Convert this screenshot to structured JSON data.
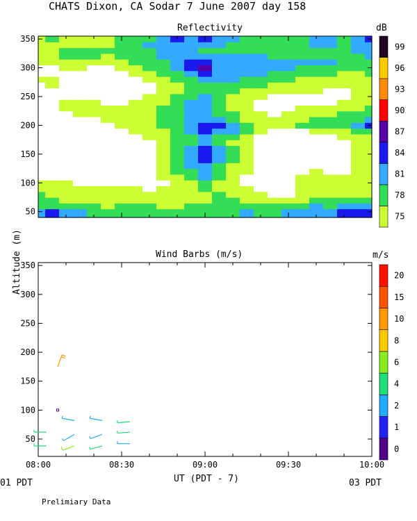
{
  "page": {
    "title": "CHATS Dixon, CA  Sodar   7 June 2007  day 158",
    "footnote": "Prelimiary Data",
    "y_axis_label": "Altitude (m)",
    "x_axis_label": "UT  (PDT - 7)",
    "x_start_date": "01 PDT",
    "x_end_date": "03 PDT"
  },
  "chart_data": [
    {
      "type": "heatmap",
      "title": "Reflectivity",
      "colorbar_unit": "dB",
      "colorbar_ticks": [
        "75",
        "78",
        "81",
        "84",
        "87",
        "90",
        "93",
        "96",
        "99"
      ],
      "colorbar_colors": [
        "#ccff33",
        "#33dd55",
        "#33aaff",
        "#1a1aee",
        "#5500aa",
        "#ff0000",
        "#ff8800",
        "#ffcc00",
        "#220022"
      ],
      "below_min_color": "#ffffff",
      "x_ticks": [
        "08:00",
        "08:30",
        "09:00",
        "09:30",
        "10:00"
      ],
      "y_ticks": [
        50,
        100,
        150,
        200,
        250,
        300,
        350
      ],
      "xlim": [
        "08:00",
        "10:00"
      ],
      "ylim": [
        40,
        355
      ],
      "times": [
        "08:00",
        "08:05",
        "08:10",
        "08:15",
        "08:20",
        "08:25",
        "08:30",
        "08:35",
        "08:40",
        "08:45",
        "08:50",
        "08:55",
        "09:00",
        "09:05",
        "09:10",
        "09:15",
        "09:20",
        "09:25",
        "09:30",
        "09:35",
        "09:40",
        "09:45",
        "09:50",
        "09:55",
        "10:00"
      ],
      "altitudes": [
        50,
        60,
        70,
        80,
        90,
        100,
        110,
        120,
        130,
        140,
        150,
        160,
        170,
        180,
        190,
        200,
        210,
        220,
        230,
        240,
        250,
        260,
        270,
        280,
        290,
        300,
        310,
        320,
        330,
        340,
        350
      ],
      "values": [
        [
          82,
          84,
          81,
          81,
          79,
          78,
          79,
          80,
          80,
          79,
          78,
          79,
          79,
          80,
          80,
          81,
          80,
          80,
          81,
          81,
          83,
          81,
          84,
          84,
          84
        ],
        [
          80,
          80,
          79,
          78,
          78,
          77,
          78,
          78,
          78,
          77,
          77,
          78,
          78,
          79,
          79,
          79,
          79,
          78,
          79,
          79,
          82,
          80,
          82,
          82,
          82
        ],
        [
          79,
          78,
          77,
          77,
          76,
          76,
          76,
          77,
          76,
          76,
          76,
          76,
          77,
          78,
          78,
          77,
          77,
          77,
          77,
          77,
          78,
          78,
          79,
          80,
          79
        ],
        [
          78,
          76,
          76,
          76,
          75,
          75,
          75,
          76,
          75,
          75,
          75,
          76,
          77,
          78,
          77,
          76,
          75,
          74,
          74,
          75,
          77,
          76,
          77,
          77,
          77
        ],
        [
          77,
          76,
          75,
          75,
          75,
          75,
          75,
          75,
          74,
          75,
          76,
          76,
          78,
          77,
          76,
          75,
          74,
          73,
          74,
          75,
          75,
          76,
          76,
          76,
          77
        ],
        [
          75,
          75,
          75,
          74,
          74,
          73,
          73,
          72,
          72,
          73,
          75,
          77,
          79,
          77,
          75,
          74,
          73,
          72,
          73,
          75,
          76,
          77,
          77,
          77,
          77
        ],
        [
          74,
          73,
          73,
          72,
          72,
          72,
          72,
          72,
          73,
          75,
          77,
          79,
          82,
          80,
          76,
          74,
          73,
          72,
          73,
          75,
          76,
          75,
          76,
          77,
          77
        ],
        [
          73,
          72,
          72,
          72,
          71,
          71,
          72,
          73,
          74,
          75,
          78,
          80,
          81,
          79,
          77,
          75,
          74,
          73,
          73,
          74,
          75,
          74,
          74,
          76,
          77
        ],
        [
          73,
          72,
          72,
          71,
          71,
          71,
          72,
          73,
          74,
          76,
          78,
          82,
          83,
          80,
          77,
          75,
          73,
          72,
          72,
          73,
          74,
          73,
          73,
          75,
          77
        ],
        [
          72,
          72,
          71,
          71,
          70,
          70,
          71,
          72,
          73,
          75,
          78,
          82,
          84,
          81,
          78,
          75,
          73,
          71,
          71,
          72,
          73,
          72,
          73,
          75,
          77
        ],
        [
          72,
          71,
          71,
          70,
          70,
          70,
          71,
          72,
          74,
          76,
          79,
          83,
          86,
          82,
          78,
          75,
          73,
          71,
          70,
          71,
          72,
          72,
          73,
          75,
          77
        ],
        [
          72,
          71,
          70,
          70,
          70,
          70,
          71,
          72,
          74,
          76,
          79,
          82,
          84,
          81,
          78,
          75,
          73,
          71,
          70,
          71,
          72,
          72,
          73,
          75,
          77
        ],
        [
          72,
          71,
          70,
          70,
          70,
          71,
          72,
          73,
          74,
          76,
          78,
          80,
          81,
          79,
          77,
          75,
          73,
          71,
          70,
          71,
          72,
          73,
          74,
          76,
          77
        ],
        [
          72,
          71,
          70,
          70,
          71,
          72,
          73,
          74,
          75,
          77,
          78,
          80,
          82,
          80,
          78,
          76,
          74,
          72,
          71,
          72,
          73,
          74,
          75,
          76,
          77
        ],
        [
          72,
          71,
          71,
          71,
          72,
          73,
          74,
          75,
          76,
          77,
          79,
          82,
          84,
          83,
          81,
          78,
          76,
          74,
          73,
          74,
          75,
          76,
          77,
          78,
          79
        ],
        [
          72,
          72,
          72,
          72,
          73,
          74,
          75,
          76,
          77,
          78,
          80,
          83,
          85,
          84,
          82,
          79,
          77,
          76,
          77,
          78,
          78,
          79,
          80,
          81,
          84
        ],
        [
          73,
          73,
          73,
          73,
          74,
          75,
          76,
          77,
          77,
          78,
          80,
          82,
          83,
          81,
          79,
          77,
          76,
          75,
          76,
          77,
          78,
          79,
          79,
          80,
          81
        ],
        [
          73,
          73,
          74,
          75,
          75,
          75,
          75,
          76,
          77,
          78,
          80,
          82,
          83,
          80,
          78,
          76,
          75,
          74,
          75,
          76,
          76,
          77,
          78,
          79,
          79
        ],
        [
          74,
          74,
          75,
          76,
          76,
          75,
          75,
          76,
          77,
          78,
          79,
          81,
          82,
          79,
          77,
          75,
          74,
          73,
          74,
          75,
          75,
          76,
          76,
          77,
          78
        ],
        [
          74,
          74,
          75,
          75,
          75,
          74,
          74,
          75,
          76,
          77,
          79,
          81,
          83,
          80,
          77,
          75,
          74,
          73,
          73,
          74,
          74,
          74,
          75,
          76,
          77
        ],
        [
          73,
          73,
          74,
          74,
          74,
          74,
          74,
          74,
          75,
          76,
          78,
          80,
          82,
          79,
          77,
          76,
          75,
          74,
          74,
          74,
          74,
          74,
          74,
          75,
          76
        ],
        [
          73,
          74,
          74,
          74,
          74,
          73,
          73,
          73,
          74,
          75,
          77,
          78,
          79,
          79,
          78,
          77,
          76,
          75,
          75,
          75,
          75,
          74,
          74,
          75,
          76
        ],
        [
          74,
          75,
          74,
          74,
          73,
          73,
          73,
          74,
          74,
          75,
          77,
          78,
          80,
          80,
          80,
          79,
          78,
          77,
          76,
          76,
          76,
          76,
          75,
          75,
          76
        ],
        [
          75,
          75,
          74,
          74,
          73,
          73,
          73,
          74,
          75,
          76,
          78,
          80,
          82,
          81,
          81,
          80,
          79,
          79,
          78,
          77,
          77,
          77,
          76,
          76,
          77
        ],
        [
          74,
          74,
          74,
          74,
          73,
          73,
          74,
          75,
          76,
          78,
          80,
          83,
          86,
          82,
          81,
          81,
          81,
          80,
          79,
          78,
          78,
          78,
          77,
          77,
          78
        ],
        [
          74,
          74,
          75,
          75,
          74,
          74,
          75,
          76,
          78,
          79,
          81,
          84,
          87,
          83,
          81,
          81,
          82,
          82,
          81,
          80,
          79,
          80,
          79,
          78,
          78
        ],
        [
          76,
          76,
          77,
          77,
          76,
          76,
          77,
          78,
          79,
          80,
          82,
          84,
          85,
          83,
          82,
          82,
          82,
          82,
          82,
          81,
          81,
          81,
          80,
          79,
          79
        ],
        [
          77,
          77,
          78,
          78,
          78,
          77,
          78,
          79,
          80,
          81,
          82,
          83,
          83,
          82,
          81,
          81,
          81,
          80,
          80,
          80,
          80,
          80,
          80,
          80,
          81
        ],
        [
          76,
          77,
          78,
          78,
          78,
          78,
          79,
          80,
          80,
          81,
          82,
          81,
          80,
          80,
          79,
          79,
          79,
          79,
          79,
          79,
          80,
          80,
          80,
          81,
          81
        ],
        [
          76,
          77,
          77,
          77,
          77,
          77,
          78,
          79,
          81,
          82,
          83,
          82,
          83,
          81,
          80,
          79,
          79,
          79,
          79,
          80,
          81,
          81,
          80,
          81,
          82
        ],
        [
          77,
          78,
          77,
          77,
          77,
          77,
          78,
          79,
          80,
          82,
          84,
          83,
          86,
          82,
          81,
          79,
          79,
          79,
          79,
          80,
          81,
          81,
          80,
          82,
          84
        ]
      ]
    },
    {
      "type": "scatter",
      "title": "Wind Barbs (m/s)",
      "colorbar_unit": "m/s",
      "colorbar_ticks": [
        "0",
        "1",
        "2",
        "4",
        "6",
        "8",
        "10",
        "15",
        "20"
      ],
      "colorbar_colors": [
        "#550088",
        "#2222ee",
        "#22aaff",
        "#22dd77",
        "#88ee22",
        "#ffcc00",
        "#ff9900",
        "#ff5500",
        "#ff1100"
      ],
      "x_ticks": [
        "08:00",
        "08:30",
        "09:00",
        "09:30",
        "10:00"
      ],
      "y_ticks": [
        50,
        100,
        150,
        200,
        250,
        300,
        350
      ],
      "xlim": [
        "08:00",
        "10:00"
      ],
      "ylim": [
        20,
        355
      ],
      "barbs": [
        {
          "time": "08:03",
          "alt": 38,
          "speed": 4.5,
          "dir": 270
        },
        {
          "time": "08:03",
          "alt": 62,
          "speed": 4.5,
          "dir": 270
        },
        {
          "time": "08:07",
          "alt": 100,
          "speed": 0.5,
          "dir": 0
        },
        {
          "time": "08:07",
          "alt": 175,
          "speed": 12,
          "dir": 20
        },
        {
          "time": "08:13",
          "alt": 38,
          "speed": 6,
          "dir": 250
        },
        {
          "time": "08:13",
          "alt": 58,
          "speed": 2.5,
          "dir": 240
        },
        {
          "time": "08:13",
          "alt": 82,
          "speed": 3.5,
          "dir": 280
        },
        {
          "time": "08:23",
          "alt": 38,
          "speed": 4.5,
          "dir": 255
        },
        {
          "time": "08:23",
          "alt": 58,
          "speed": 2.5,
          "dir": 250
        },
        {
          "time": "08:23",
          "alt": 82,
          "speed": 2.5,
          "dir": 280
        },
        {
          "time": "08:33",
          "alt": 42,
          "speed": 2.5,
          "dir": 270
        },
        {
          "time": "08:33",
          "alt": 62,
          "speed": 4.5,
          "dir": 265
        },
        {
          "time": "08:33",
          "alt": 80,
          "speed": 4.5,
          "dir": 265
        }
      ]
    }
  ]
}
